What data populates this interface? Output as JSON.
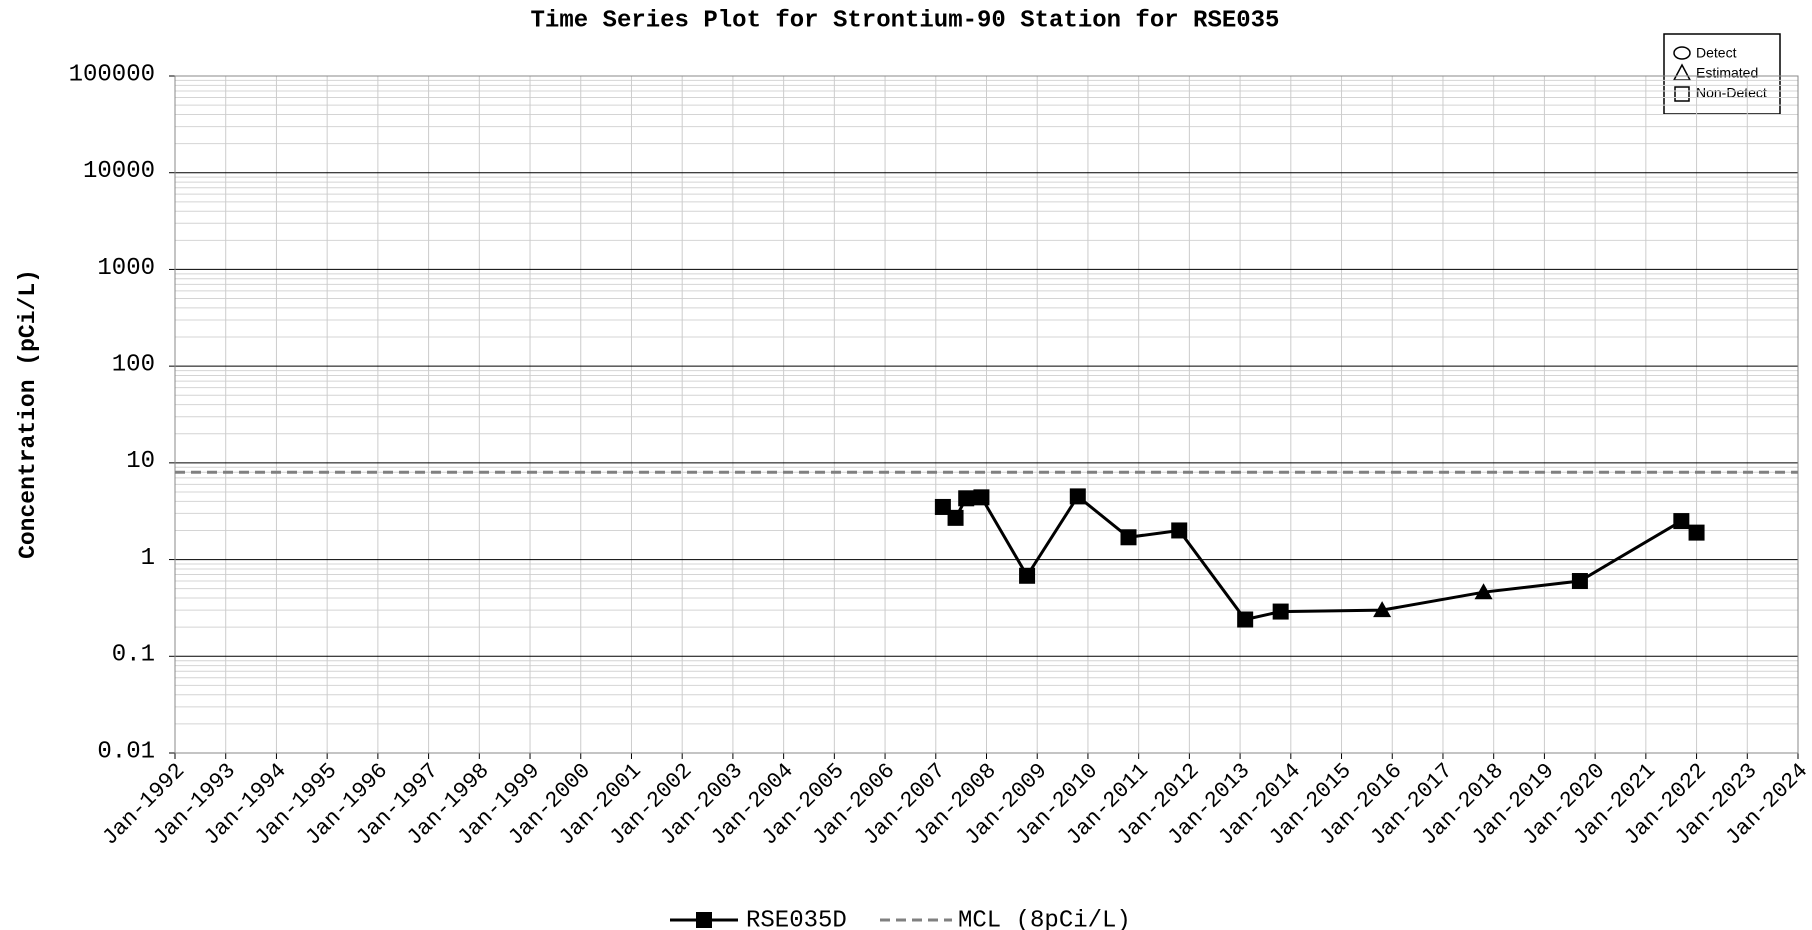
{
  "chart_data": {
    "type": "line",
    "title": "Time Series Plot for Strontium-90 Station for RSE035",
    "y_label": "Concentration (pCi/L)",
    "log_y": true,
    "grid": true,
    "ylim": [
      0.01,
      100000
    ],
    "yticks": [
      0.01,
      0.1,
      1,
      10,
      100,
      1000,
      10000,
      100000
    ],
    "xlim": [
      1992,
      2024
    ],
    "xticks": [
      {
        "value": 1992,
        "label": "Jan-1992"
      },
      {
        "value": 1993,
        "label": "Jan-1993"
      },
      {
        "value": 1994,
        "label": "Jan-1994"
      },
      {
        "value": 1995,
        "label": "Jan-1995"
      },
      {
        "value": 1996,
        "label": "Jan-1996"
      },
      {
        "value": 1997,
        "label": "Jan-1997"
      },
      {
        "value": 1998,
        "label": "Jan-1998"
      },
      {
        "value": 1999,
        "label": "Jan-1999"
      },
      {
        "value": 2000,
        "label": "Jan-2000"
      },
      {
        "value": 2001,
        "label": "Jan-2001"
      },
      {
        "value": 2002,
        "label": "Jan-2002"
      },
      {
        "value": 2003,
        "label": "Jan-2003"
      },
      {
        "value": 2004,
        "label": "Jan-2004"
      },
      {
        "value": 2005,
        "label": "Jan-2005"
      },
      {
        "value": 2006,
        "label": "Jan-2006"
      },
      {
        "value": 2007,
        "label": "Jan-2007"
      },
      {
        "value": 2008,
        "label": "Jan-2008"
      },
      {
        "value": 2009,
        "label": "Jan-2009"
      },
      {
        "value": 2010,
        "label": "Jan-2010"
      },
      {
        "value": 2011,
        "label": "Jan-2011"
      },
      {
        "value": 2012,
        "label": "Jan-2012"
      },
      {
        "value": 2013,
        "label": "Jan-2013"
      },
      {
        "value": 2014,
        "label": "Jan-2014"
      },
      {
        "value": 2015,
        "label": "Jan-2015"
      },
      {
        "value": 2016,
        "label": "Jan-2016"
      },
      {
        "value": 2017,
        "label": "Jan-2017"
      },
      {
        "value": 2018,
        "label": "Jan-2018"
      },
      {
        "value": 2019,
        "label": "Jan-2019"
      },
      {
        "value": 2020,
        "label": "Jan-2020"
      },
      {
        "value": 2021,
        "label": "Jan-2021"
      },
      {
        "value": 2022,
        "label": "Jan-2022"
      },
      {
        "value": 2023,
        "label": "Jan-2023"
      },
      {
        "value": 2024,
        "label": "Jan-2024"
      }
    ],
    "series": [
      {
        "name": "RSE035D",
        "color": "#000000",
        "x": [
          2007.14,
          2007.39,
          2007.6,
          2007.9,
          2008.8,
          2009.8,
          2010.8,
          2011.8,
          2013.1,
          2013.8,
          2015.8,
          2017.8,
          2019.7,
          2021.7,
          2022.0
        ],
        "values": [
          3.5,
          2.7,
          4.3,
          4.4,
          0.68,
          4.5,
          1.7,
          2.0,
          0.24,
          0.29,
          0.3,
          0.46,
          0.6,
          2.5,
          1.9
        ],
        "markers": [
          "square",
          "square",
          "square",
          "square",
          "square",
          "square",
          "square",
          "square",
          "square",
          "square",
          "triangle",
          "triangle",
          "square",
          "square",
          "square"
        ]
      }
    ],
    "reference_lines": [
      {
        "name": "MCL (8pCi/L)",
        "value": 8,
        "color": "#808080"
      }
    ],
    "marker_legend": [
      "Detect",
      "Estimated",
      "Non-Detect"
    ]
  }
}
